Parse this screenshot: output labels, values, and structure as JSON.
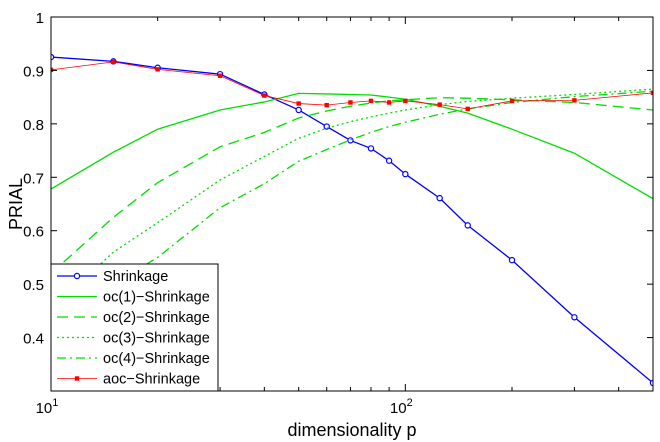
{
  "chart_data": {
    "type": "line",
    "xlabel": "dimensionality p",
    "ylabel": "PRIAL",
    "x_scale": "log",
    "xlim": [
      10,
      500
    ],
    "ylim": [
      0.3,
      1.0
    ],
    "x_ticks": [
      {
        "value": 10,
        "base": "10",
        "exp": "1"
      },
      {
        "value": 100,
        "base": "10",
        "exp": "2"
      }
    ],
    "y_ticks": [
      {
        "value": 0.4,
        "label": "0.4"
      },
      {
        "value": 0.5,
        "label": "0.5"
      },
      {
        "value": 0.6,
        "label": "0.6"
      },
      {
        "value": 0.7,
        "label": "0.7"
      },
      {
        "value": 0.8,
        "label": "0.8"
      },
      {
        "value": 0.9,
        "label": "0.9"
      },
      {
        "value": 1.0,
        "label": "1"
      }
    ],
    "grid": false,
    "legend_position": "bottom-left",
    "series": [
      {
        "name": "Shrinkage",
        "color": "#0000ff",
        "dash": "",
        "marker": "circle",
        "x": [
          10,
          15,
          20,
          30,
          40,
          50,
          60,
          70,
          80,
          90,
          100,
          125,
          150,
          200,
          300,
          500
        ],
        "y": [
          0.925,
          0.917,
          0.905,
          0.893,
          0.855,
          0.826,
          0.795,
          0.769,
          0.754,
          0.731,
          0.706,
          0.661,
          0.61,
          0.545,
          0.438,
          0.315
        ]
      },
      {
        "name": "oc(1)−Shrinkage",
        "color": "#00dd00",
        "dash": "",
        "marker": "none",
        "x": [
          10,
          15,
          20,
          30,
          40,
          50,
          60,
          70,
          80,
          90,
          100,
          125,
          150,
          200,
          300,
          500
        ],
        "y": [
          0.678,
          0.747,
          0.79,
          0.826,
          0.841,
          0.857,
          0.856,
          0.855,
          0.854,
          0.85,
          0.846,
          0.833,
          0.82,
          0.79,
          0.745,
          0.66
        ]
      },
      {
        "name": "oc(2)−Shrinkage",
        "color": "#00dd00",
        "dash": "11,6",
        "marker": "none",
        "x": [
          10,
          15,
          20,
          30,
          40,
          50,
          60,
          70,
          80,
          90,
          100,
          125,
          150,
          200,
          300,
          500
        ],
        "y": [
          0.52,
          0.625,
          0.69,
          0.757,
          0.784,
          0.811,
          0.824,
          0.833,
          0.839,
          0.843,
          0.845,
          0.849,
          0.848,
          0.845,
          0.84,
          0.826
        ]
      },
      {
        "name": "oc(3)−Shrinkage",
        "color": "#00dd00",
        "dash": "2,3",
        "marker": "none",
        "x": [
          12,
          15,
          20,
          30,
          40,
          50,
          60,
          70,
          80,
          90,
          100,
          125,
          150,
          200,
          300,
          500
        ],
        "y": [
          0.5,
          0.56,
          0.615,
          0.695,
          0.739,
          0.773,
          0.792,
          0.804,
          0.813,
          0.82,
          0.826,
          0.836,
          0.842,
          0.848,
          0.855,
          0.865
        ]
      },
      {
        "name": "oc(4)−Shrinkage",
        "color": "#00dd00",
        "dash": "9,4,2,4",
        "marker": "none",
        "x": [
          15,
          20,
          30,
          40,
          50,
          60,
          70,
          80,
          90,
          100,
          125,
          150,
          200,
          300,
          500
        ],
        "y": [
          0.5,
          0.55,
          0.643,
          0.688,
          0.73,
          0.752,
          0.77,
          0.784,
          0.795,
          0.803,
          0.818,
          0.828,
          0.84,
          0.851,
          0.861
        ]
      },
      {
        "name": "aoc−Shrinkage",
        "color": "#ff0000",
        "dash": "",
        "line_width": 0.8,
        "marker": "square",
        "x": [
          10,
          15,
          20,
          30,
          40,
          50,
          60,
          70,
          80,
          90,
          100,
          125,
          150,
          200,
          300,
          500
        ],
        "y": [
          0.901,
          0.916,
          0.902,
          0.89,
          0.853,
          0.838,
          0.835,
          0.84,
          0.843,
          0.84,
          0.843,
          0.836,
          0.828,
          0.843,
          0.844,
          0.858
        ]
      }
    ]
  }
}
